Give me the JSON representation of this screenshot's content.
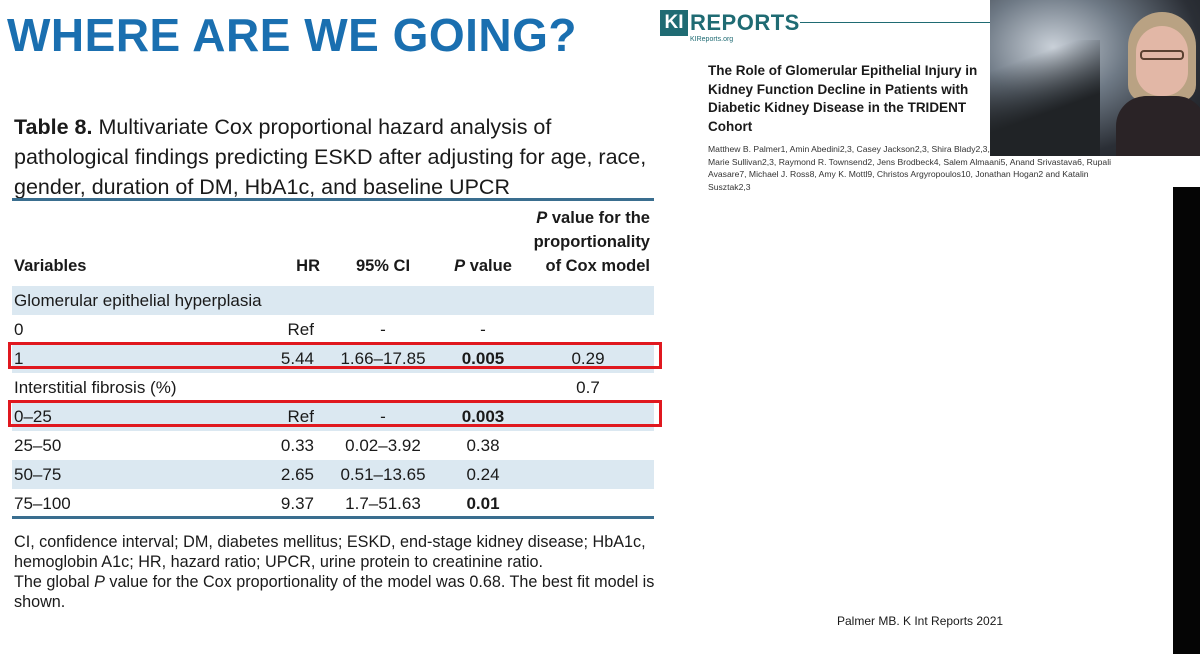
{
  "slide": {
    "title": "WHERE ARE WE GOING?"
  },
  "table": {
    "caption_label": "Table 8.",
    "caption_text": " Multivariate Cox proportional hazard analysis of pathological findings predicting ESKD after adjusting for age, race, gender, duration of DM, HbA1c, and baseline UPCR",
    "headers": {
      "variables": "Variables",
      "hr": "HR",
      "ci": "95% CI",
      "p_italic": "P",
      "p_rest": " value",
      "prop_italic": "P",
      "prop_rest": " value for the proportionality of Cox model"
    },
    "rows": [
      {
        "variable": "Glomerular epithelial hyperplasia"
      },
      {
        "variable": "0",
        "hr": "Ref",
        "ci": "-",
        "p": "-",
        "prop": ""
      },
      {
        "variable": "1",
        "hr": "5.44",
        "ci": "1.66–17.85",
        "p": "0.005",
        "prop": "0.29"
      },
      {
        "variable": "Interstitial fibrosis (%)",
        "hr": "",
        "ci": "",
        "p": "",
        "prop": "0.7"
      },
      {
        "variable": "0–25",
        "hr": "Ref",
        "ci": "-",
        "p": "0.003",
        "prop": ""
      },
      {
        "variable": "25–50",
        "hr": "0.33",
        "ci": "0.02–3.92",
        "p": "0.38",
        "prop": ""
      },
      {
        "variable": "50–75",
        "hr": "2.65",
        "ci": "0.51–13.65",
        "p": "0.24",
        "prop": ""
      },
      {
        "variable": "75–100",
        "hr": "9.37",
        "ci": "1.7–51.63",
        "p": "0.01",
        "prop": ""
      }
    ],
    "footnote_line1": "CI, confidence interval; DM, diabetes mellitus; ESKD, end-stage kidney disease; HbA1c, hemoglobin A1c; HR, hazard ratio; UPCR, urine protein to creatinine ratio.",
    "footnote_line2_a": "The global ",
    "footnote_line2_p": "P",
    "footnote_line2_b": " value for the Cox proportionality of the model was 0.68. The best fit model is shown."
  },
  "journal": {
    "logo_ki": "KI",
    "logo_reports": "REPORTS",
    "logo_url": "KIReports.org",
    "paper_title": "The Role of Glomerular Epithelial Injury in Kidney Function Decline in Patients with Diabetic Kidney Disease in the TRIDENT Cohort",
    "authors": "Matthew B. Palmer1, Amin Abedini2,3, Casey Jackson2,3, Shira Blady2,3, Shatakshee Chatterjee2,3, Katie Marie Sullivan2,3, Raymond R. Townsend2, Jens Brodbeck4, Salem Almaani5, Anand Srivastava6, Rupali Avasare7, Michael J. Ross8, Amy K. Mottl9, Christos Argyropoulos10, Jonathan Hogan2 and Katalin Susztak2,3"
  },
  "citation": "Palmer MB. K Int Reports 2021",
  "colors": {
    "title_blue": "#1a6fb0",
    "table_rule": "#3a6e8f",
    "row_shade": "#dbe8f1",
    "highlight_red": "#e0181f",
    "journal_teal": "#1f6b73"
  }
}
